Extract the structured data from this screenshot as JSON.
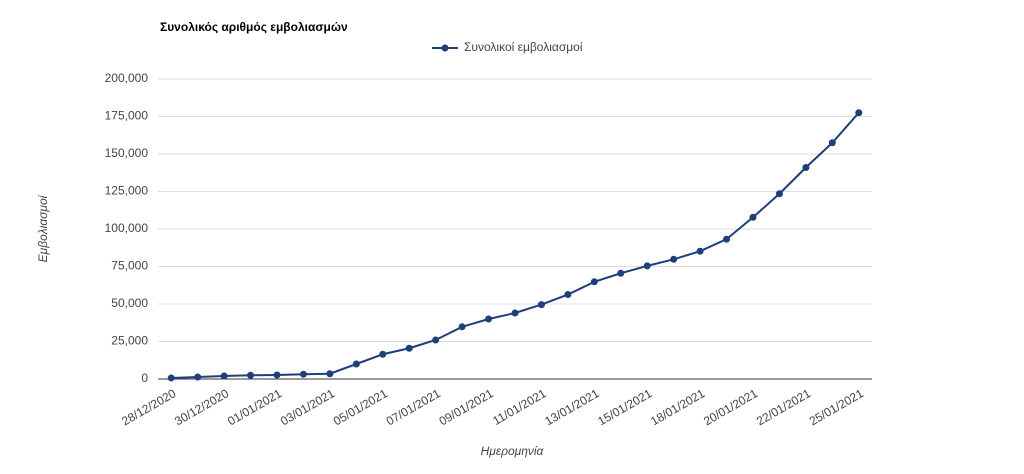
{
  "chart_data": {
    "type": "line",
    "title": "Συνολικός αριθμός εμβολιασμών",
    "xlabel": "Ημερομηνία",
    "ylabel": "Εμβολιασμοί",
    "categories": [
      "28/12/2020",
      null,
      "30/12/2020",
      null,
      "01/01/2021",
      null,
      "03/01/2021",
      null,
      "05/01/2021",
      null,
      "07/01/2021",
      null,
      "09/01/2021",
      null,
      "11/01/2021",
      null,
      "13/01/2021",
      null,
      "15/01/2021",
      null,
      "18/01/2021",
      null,
      "20/01/2021",
      null,
      "22/01/2021",
      null,
      "25/01/2021"
    ],
    "series": [
      {
        "name": "Συνολικοί εμβολιασμοί",
        "color": "#1f3f7a",
        "values": [
          700,
          1300,
          2000,
          2500,
          2700,
          3200,
          3500,
          10000,
          16500,
          20500,
          26000,
          34800,
          40000,
          44000,
          49600,
          56300,
          64800,
          70500,
          75400,
          79800,
          85200,
          93200,
          107800,
          123500,
          141000,
          157500,
          177500
        ]
      }
    ],
    "ylim": [
      0,
      200000
    ],
    "yticks": [
      {
        "value": 0,
        "label": "0"
      },
      {
        "value": 25000,
        "label": "25,000"
      },
      {
        "value": 50000,
        "label": "50,000"
      },
      {
        "value": 75000,
        "label": "75,000"
      },
      {
        "value": 100000,
        "label": "100,000"
      },
      {
        "value": 125000,
        "label": "125,000"
      },
      {
        "value": 150000,
        "label": "150,000"
      },
      {
        "value": 175000,
        "label": "175,000"
      },
      {
        "value": 200000,
        "label": "200,000"
      }
    ],
    "grid": true,
    "legend": "top"
  }
}
